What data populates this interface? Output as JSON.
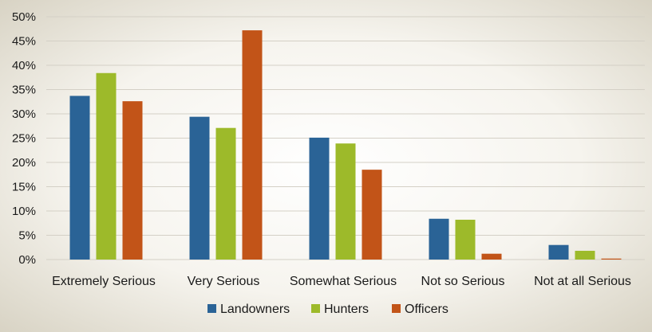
{
  "chart_data": {
    "type": "bar",
    "categories": [
      "Extremely Serious",
      "Very Serious",
      "Somewhat Serious",
      "Not so Serious",
      "Not at all Serious"
    ],
    "series": [
      {
        "name": "Landowners",
        "color": "#2a6396",
        "values": [
          33.7,
          29.4,
          25.1,
          8.4,
          3.0
        ]
      },
      {
        "name": "Hunters",
        "color": "#9dba2a",
        "values": [
          38.4,
          27.1,
          23.9,
          8.2,
          1.8
        ]
      },
      {
        "name": "Officers",
        "color": "#c25418",
        "values": [
          32.6,
          47.2,
          18.5,
          1.2,
          0.2
        ]
      }
    ],
    "y_ticks": [
      "0%",
      "5%",
      "10%",
      "15%",
      "20%",
      "25%",
      "30%",
      "35%",
      "40%",
      "45%",
      "50%"
    ],
    "ylim": [
      0,
      50
    ],
    "grid": true,
    "legend_position": "bottom",
    "title": "",
    "xlabel": "",
    "ylabel": ""
  }
}
